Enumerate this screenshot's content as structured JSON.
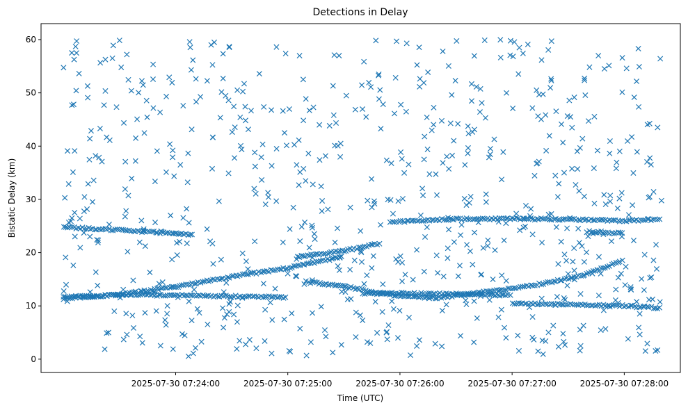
{
  "chart_data": {
    "type": "scatter",
    "title": "Detections in Delay",
    "xlabel": "Time (UTC)",
    "ylabel": "Bistatic Delay (km)",
    "marker": "x",
    "color": "#1f77b4",
    "grid": false,
    "xlim": [
      "2025-07-30 07:22:48",
      "2025-07-30 07:28:30"
    ],
    "ylim": [
      -2.5,
      63
    ],
    "x_ticks": [
      "2025-07-30 07:24:00",
      "2025-07-30 07:25:00",
      "2025-07-30 07:26:00",
      "2025-07-30 07:27:00",
      "2025-07-30 07:28:00"
    ],
    "y_ticks": [
      0,
      10,
      20,
      30,
      40,
      50,
      60
    ],
    "series": [
      {
        "data_span": [
          "2025-07-30 07:23:00",
          "2025-07-30 07:28:20"
        ],
        "tracks": [
          {
            "points": [
              [
                "2025-07-30 07:23:00",
                11.6
              ],
              [
                "2025-07-30 07:23:30",
                12.1
              ],
              [
                "2025-07-30 07:24:00",
                13.6
              ],
              [
                "2025-07-30 07:24:30",
                15.5
              ],
              [
                "2025-07-30 07:25:00",
                17.1
              ],
              [
                "2025-07-30 07:25:30",
                19.3
              ]
            ]
          },
          {
            "points": [
              [
                "2025-07-30 07:25:05",
                19.2
              ],
              [
                "2025-07-30 07:25:30",
                20.3
              ],
              [
                "2025-07-30 07:25:50",
                21.8
              ]
            ]
          },
          {
            "points": [
              [
                "2025-07-30 07:23:00",
                24.8
              ],
              [
                "2025-07-30 07:23:20",
                24.4
              ],
              [
                "2025-07-30 07:23:45",
                23.9
              ],
              [
                "2025-07-30 07:24:10",
                23.4
              ]
            ]
          },
          {
            "points": [
              [
                "2025-07-30 07:23:00",
                11.4
              ],
              [
                "2025-07-30 07:23:30",
                12.1
              ],
              [
                "2025-07-30 07:24:00",
                12.0
              ],
              [
                "2025-07-30 07:24:30",
                11.8
              ],
              [
                "2025-07-30 07:25:00",
                11.6
              ]
            ]
          },
          {
            "points": [
              [
                "2025-07-30 07:25:10",
                14.5
              ],
              [
                "2025-07-30 07:25:25",
                13.9
              ],
              [
                "2025-07-30 07:25:35",
                13.4
              ],
              [
                "2025-07-30 07:25:45",
                12.6
              ],
              [
                "2025-07-30 07:26:00",
                11.8
              ],
              [
                "2025-07-30 07:26:20",
                11.5
              ],
              [
                "2025-07-30 07:26:45",
                12.6
              ],
              [
                "2025-07-30 07:27:00",
                13.3
              ],
              [
                "2025-07-30 07:27:20",
                14.4
              ],
              [
                "2025-07-30 07:27:40",
                16.0
              ],
              [
                "2025-07-30 07:28:00",
                18.6
              ]
            ]
          },
          {
            "points": [
              [
                "2025-07-30 07:25:40",
                12.3
              ],
              [
                "2025-07-30 07:26:00",
                12.4
              ],
              [
                "2025-07-30 07:26:30",
                12.2
              ],
              [
                "2025-07-30 07:27:00",
                12.0
              ]
            ]
          },
          {
            "points": [
              [
                "2025-07-30 07:25:55",
                25.8
              ],
              [
                "2025-07-30 07:26:30",
                26.3
              ],
              [
                "2025-07-30 07:27:00",
                26.4
              ],
              [
                "2025-07-30 07:27:30",
                26.2
              ],
              [
                "2025-07-30 07:28:00",
                26.0
              ],
              [
                "2025-07-30 07:28:20",
                26.3
              ]
            ]
          },
          {
            "points": [
              [
                "2025-07-30 07:27:40",
                24.0
              ],
              [
                "2025-07-30 07:28:00",
                23.6
              ]
            ]
          },
          {
            "points": [
              [
                "2025-07-30 07:27:00",
                10.4
              ],
              [
                "2025-07-30 07:27:30",
                10.3
              ],
              [
                "2025-07-30 07:28:00",
                10.0
              ],
              [
                "2025-07-30 07:28:20",
                9.6
              ]
            ]
          }
        ],
        "background_clutter": {
          "count": 720,
          "delay_range": [
            0.5,
            60
          ]
        }
      }
    ]
  }
}
